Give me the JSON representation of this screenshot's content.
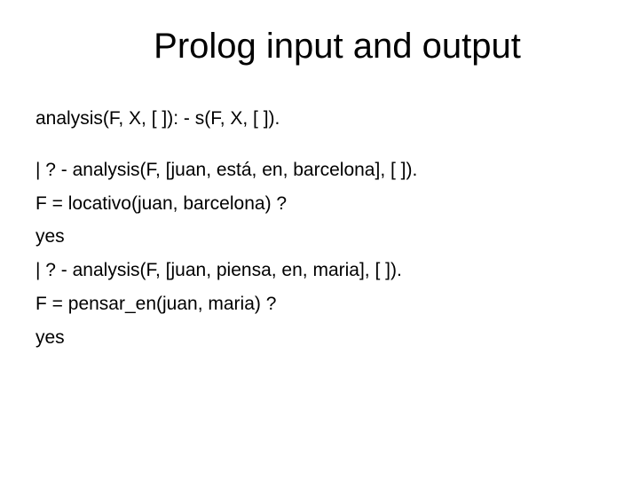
{
  "title": "Prolog input and output",
  "lines": {
    "l1": "analysis(F, X, [ ]): - s(F, X, [ ]).",
    "l2": "| ? - analysis(F, [juan, está, en, barcelona], [ ]).",
    "l3": "F = locativo(juan, barcelona) ?",
    "l4": "yes",
    "l5": "| ? - analysis(F, [juan, piensa, en, maria], [ ]).",
    "l6": "F = pensar_en(juan, maria) ?",
    "l7": "yes"
  },
  "colors": {
    "background": "#ffffff",
    "text": "#000000"
  },
  "fonts": {
    "title_size_pt": 40,
    "body_size_pt": 21,
    "family": "Arial"
  }
}
